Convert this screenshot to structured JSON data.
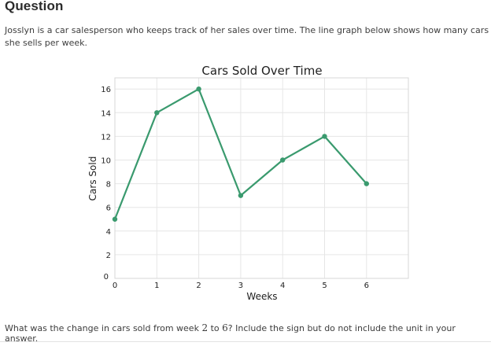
{
  "heading": "Question",
  "prompt": "Josslyn is a car salesperson who keeps track of her sales over time. The line graph below shows how many cars she sells per week.",
  "question": {
    "before": "What was the change in cars sold from week ",
    "start_week": "2",
    "middle": " to ",
    "end_week": "6",
    "after": "? Include the sign but do not include the unit in your answer."
  },
  "colors": {
    "line": "#3a9a6e",
    "grid": "#e6e6e6",
    "frame": "#d7d7d7"
  },
  "chart_data": {
    "type": "line",
    "title": "Cars Sold Over Time",
    "xlabel": "Weeks",
    "ylabel": "Cars Sold",
    "x": [
      0,
      1,
      2,
      3,
      4,
      5,
      6
    ],
    "values": [
      5,
      14,
      16,
      7,
      10,
      12,
      8
    ],
    "xticks": [
      "0",
      "1",
      "2",
      "3",
      "4",
      "5",
      "6"
    ],
    "yticks": [
      "0",
      "2",
      "4",
      "6",
      "8",
      "10",
      "12",
      "14",
      "16"
    ],
    "xlim": [
      0,
      7
    ],
    "ylim": [
      0,
      17
    ],
    "grid": true
  }
}
